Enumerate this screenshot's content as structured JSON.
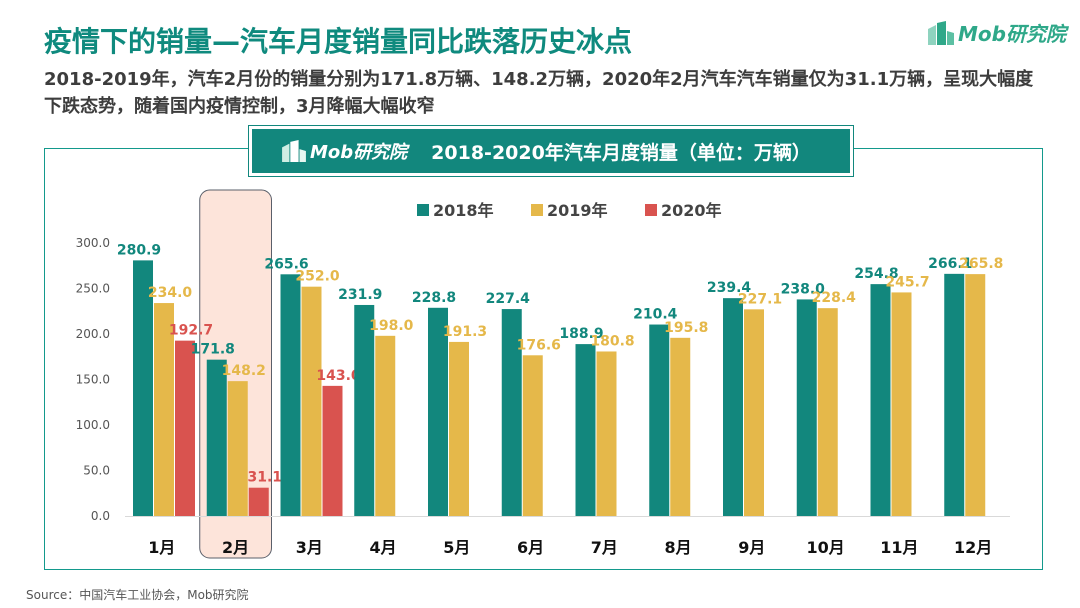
{
  "header": {
    "title": "疫情下的销量—汽车月度销量同比跌落历史冰点",
    "subtitle": "2018-2019年，汽车2月份的销量分别为171.8万辆、148.2万辆，2020年2月汽车汽车销量仅为31.1万辆，呈现大幅度下跌态势，随着国内疫情控制，3月降幅大幅收窄",
    "logo_text": "Mob研究院"
  },
  "source": "Source：中国汽车工业协会，Mob研究院",
  "colors": {
    "teal": "#12877d",
    "gold": "#e5b84a",
    "red": "#d9534f"
  },
  "chart_data": {
    "type": "bar",
    "title": "2018-2020年汽车月度销量（单位：万辆）",
    "banner_logo_text": "Mob研究院",
    "categories": [
      "1月",
      "2月",
      "3月",
      "4月",
      "5月",
      "6月",
      "7月",
      "8月",
      "9月",
      "10月",
      "11月",
      "12月"
    ],
    "series": [
      {
        "name": "2018年",
        "color": "#12877d",
        "values": [
          280.9,
          171.8,
          265.6,
          231.9,
          228.8,
          227.4,
          188.9,
          210.4,
          239.4,
          238.0,
          254.8,
          266.1
        ]
      },
      {
        "name": "2019年",
        "color": "#e5b84a",
        "values": [
          234.0,
          148.2,
          252.0,
          198.0,
          191.3,
          176.6,
          180.8,
          195.8,
          227.1,
          228.4,
          245.7,
          265.8
        ]
      },
      {
        "name": "2020年",
        "color": "#d9534f",
        "values": [
          192.7,
          31.1,
          143.0,
          null,
          null,
          null,
          null,
          null,
          null,
          null,
          null,
          null
        ]
      }
    ],
    "ylim": [
      0,
      300
    ],
    "yticks": [
      "0.0",
      "50.0",
      "100.0",
      "150.0",
      "200.0",
      "250.0",
      "300.0"
    ],
    "highlight_category": "2月",
    "legend_position": "top-center",
    "grid": false
  }
}
